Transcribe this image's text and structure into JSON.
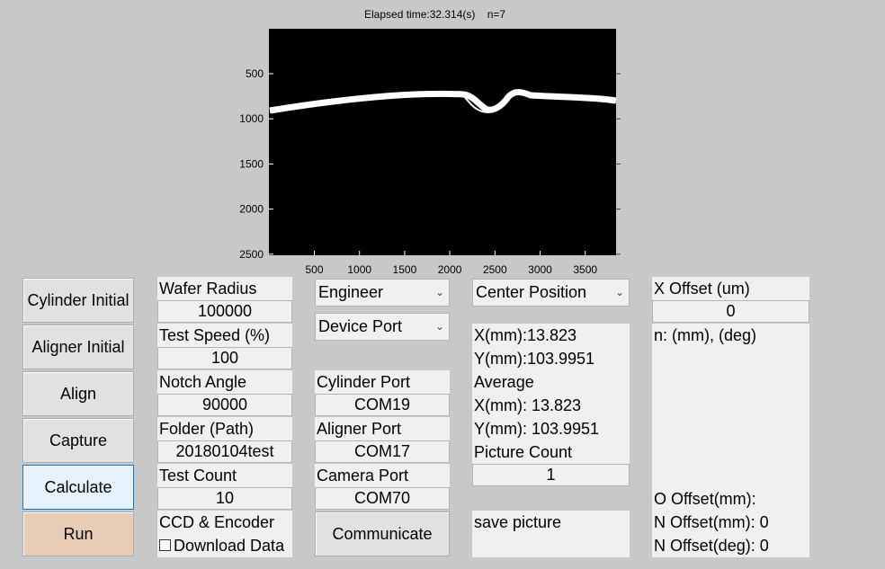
{
  "plot": {
    "title": "Elapsed time:32.314(s)    n=7",
    "x_ticks": [
      "500",
      "1000",
      "1500",
      "2000",
      "2500",
      "3000",
      "3500"
    ],
    "y_ticks": [
      "500",
      "1000",
      "1500",
      "2000",
      "2500"
    ],
    "background_color": "#000000",
    "trace_color": "#ffffff"
  },
  "buttons": {
    "cylinder_initial": "Cylinder Initial",
    "aligner_initial": "Aligner Initial",
    "align": "Align",
    "capture": "Capture",
    "calculate": "Calculate",
    "run": "Run",
    "communicate": "Communicate"
  },
  "params": {
    "wafer_radius_label": "Wafer Radius",
    "wafer_radius_value": "100000",
    "test_speed_label": "Test Speed (%)",
    "test_speed_value": "100",
    "notch_angle_label": "Notch Angle",
    "notch_angle_value": "90000",
    "folder_label": "Folder (Path)",
    "folder_value": "20180104test",
    "test_count_label": "Test Count",
    "test_count_value": "10",
    "ccd_label": "CCD & Encoder",
    "download_label": "Download Data"
  },
  "ports": {
    "mode_selected": "Engineer",
    "device_port_selected": "Device Port",
    "cylinder_port_label": "Cylinder Port",
    "cylinder_port_value": "COM19",
    "aligner_port_label": "Aligner Port",
    "aligner_port_value": "COM17",
    "camera_port_label": "Camera Port",
    "camera_port_value": "COM70"
  },
  "center": {
    "selected": "Center Position",
    "x_mm": "X(mm):13.823",
    "y_mm": "Y(mm):103.9951",
    "average_label": "Average",
    "avg_x_mm": "X(mm): 13.823",
    "avg_y_mm": "Y(mm): 103.9951",
    "picture_count_label": "Picture Count",
    "picture_count_value": "1",
    "save_picture": "save picture"
  },
  "offset": {
    "x_offset_label": "X Offset (um)",
    "x_offset_value": "0",
    "n_header": "n: (mm), (deg)",
    "o_offset": "O Offset(mm):",
    "n_offset_mm": "N Offset(mm): 0",
    "n_offset_deg": "N Offset(deg): 0"
  }
}
